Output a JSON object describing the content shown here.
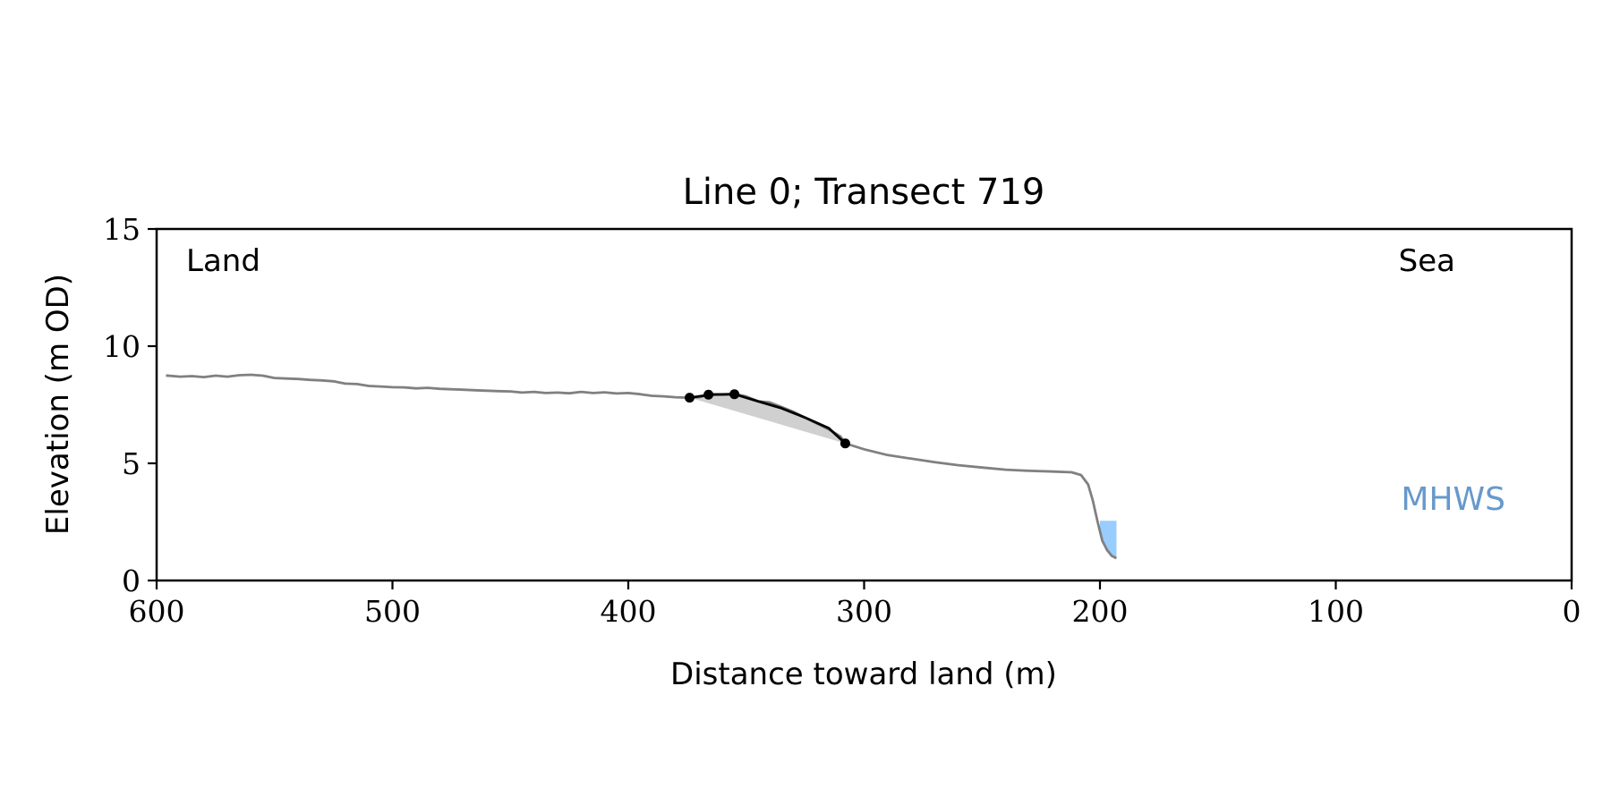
{
  "chart_data": {
    "type": "line",
    "title": "Line 0; Transect 719",
    "xlabel": "Distance toward land (m)",
    "ylabel": "Elevation (m OD)",
    "xlim": [
      600,
      0
    ],
    "ylim": [
      0,
      15
    ],
    "xticks": [
      600,
      500,
      400,
      300,
      200,
      100,
      0
    ],
    "yticks": [
      0,
      5,
      10,
      15
    ],
    "annotations": {
      "land": "Land",
      "sea": "Sea",
      "mhws": "MHWS"
    },
    "colors": {
      "profile": "#808080",
      "dune": "#000000",
      "fill": "#d0d0d0",
      "water": "#99ccff",
      "mhws": "#6699cc"
    },
    "series": [
      {
        "x": [
          596,
          590,
          585,
          580,
          575,
          570,
          565,
          560,
          555,
          550,
          545,
          540,
          535,
          530,
          525,
          520,
          515,
          510,
          505,
          500,
          495,
          490,
          485,
          480,
          475,
          470,
          465,
          460,
          455,
          450,
          445,
          440,
          435,
          430,
          425,
          420,
          415,
          410,
          405,
          400,
          395,
          390,
          385,
          380,
          375,
          370,
          365,
          360,
          355,
          350,
          345,
          340,
          335,
          330,
          325,
          320,
          315,
          310,
          308,
          300,
          290,
          280,
          270,
          260,
          250,
          240,
          230,
          220,
          212,
          208,
          205,
          203,
          201,
          199,
          197,
          195,
          193
        ],
        "y": [
          8.75,
          8.7,
          8.72,
          8.68,
          8.74,
          8.7,
          8.76,
          8.78,
          8.74,
          8.64,
          8.62,
          8.6,
          8.56,
          8.54,
          8.5,
          8.4,
          8.38,
          8.3,
          8.28,
          8.25,
          8.24,
          8.2,
          8.22,
          8.18,
          8.16,
          8.14,
          8.12,
          8.1,
          8.08,
          8.07,
          8.02,
          8.05,
          8.0,
          8.02,
          7.99,
          8.05,
          8.0,
          8.03,
          7.98,
          8.0,
          7.95,
          7.88,
          7.86,
          7.82,
          7.8,
          7.82,
          7.95,
          7.93,
          7.96,
          7.85,
          7.65,
          7.6,
          7.4,
          7.2,
          6.95,
          6.7,
          6.45,
          6.15,
          5.85,
          5.6,
          5.35,
          5.2,
          5.05,
          4.92,
          4.82,
          4.73,
          4.68,
          4.65,
          4.62,
          4.5,
          4.1,
          3.4,
          2.5,
          1.7,
          1.3,
          1.05,
          0.95
        ]
      }
    ],
    "dune_profile": {
      "x": [
        374,
        365,
        355,
        345,
        335,
        325,
        315,
        308
      ],
      "y": [
        7.8,
        7.93,
        7.95,
        7.65,
        7.35,
        6.95,
        6.5,
        5.85
      ]
    },
    "dune_points": [
      {
        "x": 374,
        "y": 7.8
      },
      {
        "x": 366,
        "y": 7.93
      },
      {
        "x": 355,
        "y": 7.95
      },
      {
        "x": 308,
        "y": 5.85
      }
    ],
    "water_region": {
      "x": [
        200,
        193
      ],
      "y_top": 2.55
    }
  }
}
